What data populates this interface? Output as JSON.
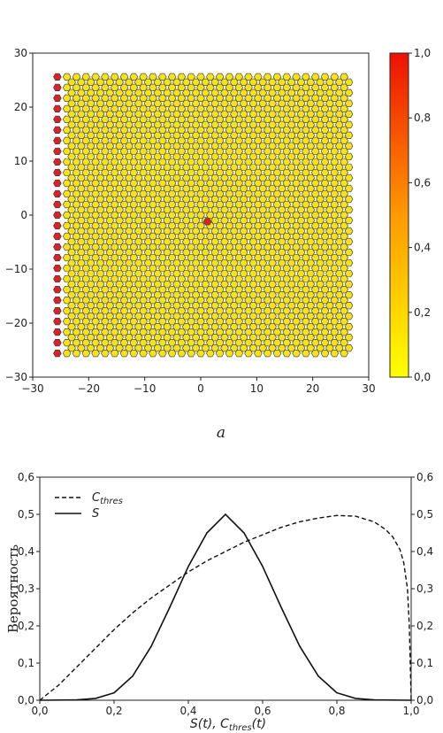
{
  "caption": "a",
  "colors": {
    "low": "#ffff00",
    "mid": "#ff9900",
    "high": "#ee1100",
    "cell_yellow": "#f5e21a",
    "cell_red": "#d9222a"
  },
  "chart_data": [
    {
      "type": "scatter",
      "title": "",
      "xlim": [
        -30,
        30
      ],
      "ylim": [
        -30,
        30
      ],
      "x_ticks": [
        -30,
        -20,
        -10,
        0,
        10,
        20,
        30
      ],
      "y_ticks": [
        -30,
        -20,
        -10,
        0,
        10,
        20,
        30
      ],
      "x_tick_labels": [
        "−30",
        "−20",
        "−10",
        "0",
        "10",
        "20",
        "30"
      ],
      "y_tick_labels": [
        "−30",
        "−20",
        "−10",
        "0",
        "10",
        "20",
        "30"
      ],
      "lattice": {
        "x_range": [
          -25.6,
          25.6
        ],
        "y_range": [
          -25.6,
          25.6
        ],
        "columns": 31,
        "rows": 53,
        "value": 0
      },
      "red_column_x": -25.6,
      "red_center": {
        "x": 1.2,
        "y": -1.2,
        "value": 1.0
      },
      "colorbar": {
        "min": 0,
        "max": 1,
        "ticks": [
          "0,0",
          "0,2",
          "0,4",
          "0,6",
          "0,8",
          "1,0"
        ]
      }
    },
    {
      "type": "line",
      "title": "",
      "xlabel": "S(t), C_thres(t)",
      "ylabel": "Вероятность",
      "xlim": [
        0,
        1
      ],
      "ylim": [
        0,
        0.6
      ],
      "x_tick_labels": [
        "0,0",
        "0,2",
        "0,4",
        "0,6",
        "0,8",
        "1,0"
      ],
      "y_tick_labels": [
        "0,0",
        "0,1",
        "0,2",
        "0,3",
        "0,4",
        "0,5",
        "0,6"
      ],
      "legend_position": "top-left",
      "series": [
        {
          "name": "C_thres",
          "style": "dashed",
          "x": [
            0,
            0.05,
            0.1,
            0.15,
            0.2,
            0.25,
            0.3,
            0.35,
            0.4,
            0.45,
            0.5,
            0.55,
            0.6,
            0.65,
            0.7,
            0.75,
            0.8,
            0.85,
            0.9,
            0.93,
            0.95,
            0.97,
            0.98,
            0.99,
            0.995,
            1.0
          ],
          "y": [
            0,
            0.04,
            0.09,
            0.14,
            0.19,
            0.235,
            0.275,
            0.31,
            0.345,
            0.375,
            0.4,
            0.425,
            0.445,
            0.465,
            0.48,
            0.49,
            0.497,
            0.495,
            0.48,
            0.46,
            0.44,
            0.405,
            0.37,
            0.3,
            0.2,
            0.0
          ]
        },
        {
          "name": "S",
          "style": "solid",
          "x": [
            0,
            0.1,
            0.15,
            0.2,
            0.25,
            0.3,
            0.35,
            0.4,
            0.45,
            0.5,
            0.55,
            0.6,
            0.65,
            0.7,
            0.75,
            0.8,
            0.85,
            0.9,
            1.0
          ],
          "y": [
            0,
            0.001,
            0.005,
            0.02,
            0.065,
            0.145,
            0.25,
            0.36,
            0.45,
            0.5,
            0.45,
            0.36,
            0.25,
            0.145,
            0.065,
            0.02,
            0.005,
            0.001,
            0
          ]
        }
      ]
    }
  ]
}
